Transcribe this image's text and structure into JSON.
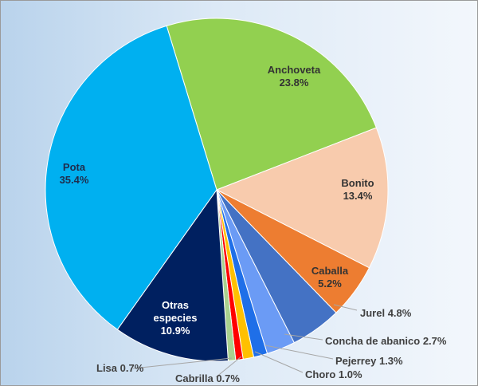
{
  "chart_data": {
    "type": "pie",
    "categories": [
      "Anchoveta",
      "Bonito",
      "Caballa",
      "Jurel",
      "Concha de abanico",
      "Pejerrey",
      "Choro",
      "Cabrilla",
      "Lisa",
      "Otras especies",
      "Pota"
    ],
    "values": [
      23.8,
      13.4,
      5.2,
      4.8,
      2.7,
      1.3,
      1.0,
      0.7,
      0.7,
      10.9,
      35.4
    ],
    "value_labels": [
      "23.8%",
      "13.4%",
      "5.2%",
      "4.8%",
      "2.7%",
      "1.3%",
      "1.0%",
      "0.7%",
      "0.7%",
      "10.9%",
      "35.4%"
    ],
    "colors": [
      "#92d050",
      "#f8cbad",
      "#ed7d31",
      "#4472c4",
      "#6b9bf5",
      "#1f6fe8",
      "#ffc000",
      "#ff0000",
      "#a9d18e",
      "#002060",
      "#00b0f0"
    ]
  }
}
